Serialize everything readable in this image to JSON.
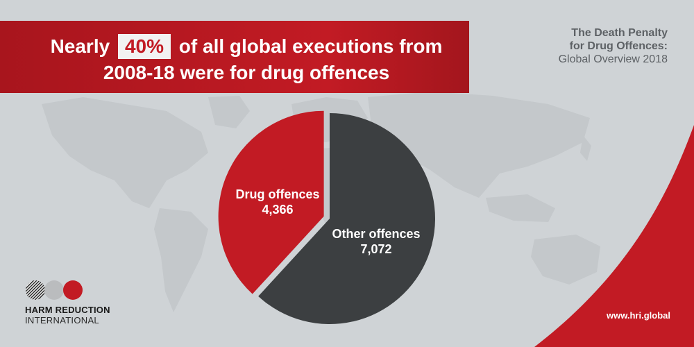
{
  "headline": {
    "line1_before": "Nearly",
    "highlight": "40%",
    "line1_after": "of all global executions from",
    "line2": "2008-18 were for drug offences"
  },
  "report": {
    "line1": "The Death Penalty",
    "line2": "for Drug Offences:",
    "line3": "Global Overview 2018"
  },
  "logo": {
    "line1": "HARM REDUCTION",
    "line2": "INTERNATIONAL",
    "icon": "overlapping-circles-icon"
  },
  "website": "www.hri.global",
  "colors": {
    "brand_red": "#c21b24",
    "dark_grey": "#3c3f41",
    "background": "#cfd3d6",
    "map": "#c4c8cb"
  },
  "chart_data": {
    "type": "pie",
    "title": "",
    "slices": [
      {
        "label": "Drug offences",
        "value": 4366,
        "value_label": "4,366",
        "color": "#c21b24"
      },
      {
        "label": "Other offences",
        "value": 7072,
        "value_label": "7,072",
        "color": "#3c3f41"
      }
    ],
    "exploded": "Drug offences",
    "legend": "none"
  }
}
